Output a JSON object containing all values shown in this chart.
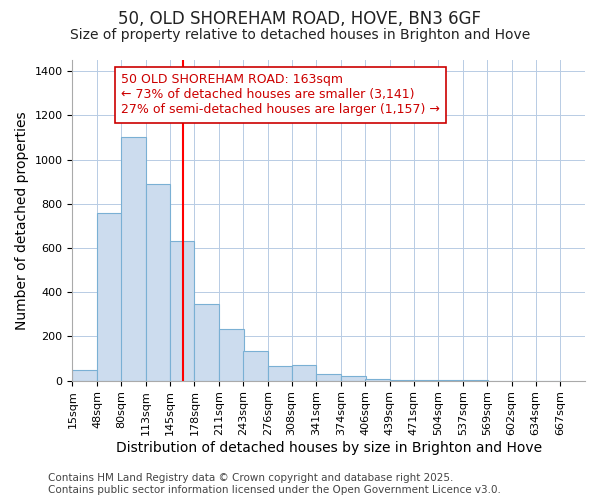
{
  "title": "50, OLD SHOREHAM ROAD, HOVE, BN3 6GF",
  "subtitle": "Size of property relative to detached houses in Brighton and Hove",
  "xlabel": "Distribution of detached houses by size in Brighton and Hove",
  "ylabel": "Number of detached properties",
  "bar_edges": [
    15,
    48,
    80,
    113,
    145,
    178,
    211,
    243,
    276,
    308,
    341,
    374,
    406,
    439,
    471,
    504,
    537,
    569,
    602,
    634,
    667
  ],
  "bar_values": [
    50,
    760,
    1100,
    890,
    630,
    345,
    235,
    135,
    65,
    70,
    30,
    20,
    10,
    5,
    3,
    3,
    2,
    1,
    1,
    1
  ],
  "bar_color": "#ccdcee",
  "bar_edge_color": "#7ab0d4",
  "vline_x": 163,
  "vline_color": "#ff0000",
  "annotation_lines": [
    "50 OLD SHOREHAM ROAD: 163sqm",
    "← 73% of detached houses are smaller (3,141)",
    "27% of semi-detached houses are larger (1,157) →"
  ],
  "annotation_color": "#cc0000",
  "annotation_bg": "#ffffff",
  "annotation_border_color": "#cc0000",
  "ylim": [
    0,
    1450
  ],
  "yticks": [
    0,
    200,
    400,
    600,
    800,
    1000,
    1200,
    1400
  ],
  "tick_labels": [
    "15sqm",
    "48sqm",
    "80sqm",
    "113sqm",
    "145sqm",
    "178sqm",
    "211sqm",
    "243sqm",
    "276sqm",
    "308sqm",
    "341sqm",
    "374sqm",
    "406sqm",
    "439sqm",
    "471sqm",
    "504sqm",
    "537sqm",
    "569sqm",
    "602sqm",
    "634sqm",
    "667sqm"
  ],
  "footer_line1": "Contains HM Land Registry data © Crown copyright and database right 2025.",
  "footer_line2": "Contains public sector information licensed under the Open Government Licence v3.0.",
  "bg_color": "#ffffff",
  "plot_bg_color": "#ffffff",
  "title_fontsize": 12,
  "subtitle_fontsize": 10,
  "axis_label_fontsize": 10,
  "tick_fontsize": 8,
  "annotation_fontsize": 9,
  "footer_fontsize": 7.5
}
